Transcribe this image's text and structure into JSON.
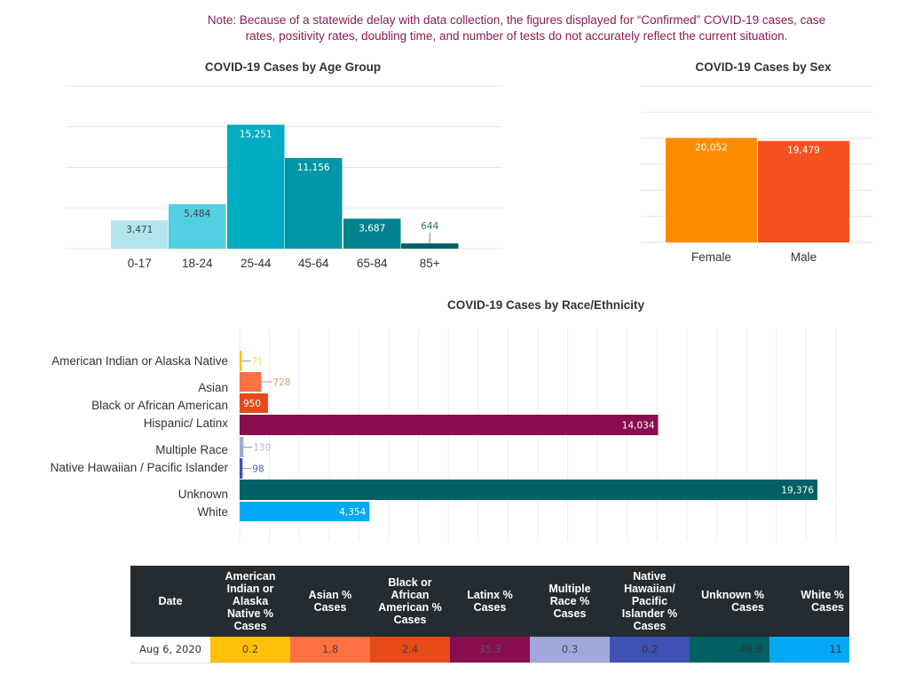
{
  "note": "Note: Because of a statewide delay with data collection, the figures displayed for “Confirmed” COVID-19 cases, case rates, positivity rates, doubling time, and number of tests do not accurately reflect the current situation.",
  "chart_data": [
    {
      "id": "age",
      "type": "bar",
      "title": "COVID-19 Cases by Age Group",
      "xlabel": "",
      "ylabel": "",
      "categories": [
        "0-17",
        "18-24",
        "25-44",
        "45-64",
        "65-84",
        "85+"
      ],
      "values": [
        3471,
        5484,
        15251,
        11156,
        3687,
        644
      ],
      "value_labels": [
        "3,471",
        "5,484",
        "15,251",
        "11,156",
        "3,687",
        "644"
      ],
      "colors": [
        "#b2e6ee",
        "#52cfe0",
        "#00acc1",
        "#0097a7",
        "#00838f",
        "#006064"
      ],
      "label_colors": [
        "#444444",
        "#444444",
        "#ffffff",
        "#ffffff",
        "#ffffff",
        "#406870"
      ],
      "ylim": [
        0,
        20000
      ],
      "grid": true,
      "legend": "none"
    },
    {
      "id": "sex",
      "type": "bar",
      "title": "COVID-19 Cases by Sex",
      "xlabel": "",
      "ylabel": "",
      "categories": [
        "Female",
        "Male"
      ],
      "values": [
        20052,
        19479
      ],
      "value_labels": [
        "20,052",
        "19,479"
      ],
      "colors": [
        "#ff8c00",
        "#f4511e"
      ],
      "label_colors": [
        "#ffffff",
        "#ffffff"
      ],
      "ylim": [
        0,
        30000
      ],
      "grid": true,
      "legend": "none"
    },
    {
      "id": "race",
      "type": "bar",
      "orientation": "horizontal",
      "title": "COVID-19 Cases by Race/Ethnicity",
      "xlabel": "",
      "ylabel": "",
      "categories": [
        "American Indian or Alaska Native",
        "Asian",
        "Black or African American",
        "Hispanic/ Latinx",
        "Multiple Race",
        "Native Hawaiian / Pacific Islander",
        "Unknown",
        "White"
      ],
      "values": [
        71,
        728,
        950,
        14034,
        130,
        98,
        19376,
        4354
      ],
      "value_labels": [
        "71",
        "728",
        "950",
        "14,034",
        "130",
        "98",
        "19,376",
        "4,354"
      ],
      "colors": [
        "#ffc107",
        "#ff7043",
        "#e64a19",
        "#880e4f",
        "#9fa8da",
        "#3f51b5",
        "#006064",
        "#03a9f4"
      ],
      "label_colors": [
        "#f5d66a",
        "#f0977a",
        "#ffffff",
        "#ffffff",
        "#b0b6de",
        "#5060b8",
        "#ffffff",
        "#ffffff"
      ],
      "xlim": [
        0,
        20000
      ],
      "grid": true,
      "legend": "none"
    }
  ],
  "table": {
    "headers": [
      "Date",
      "American Indian or Alaska Native % Cases",
      "Asian % Cases",
      "Black or African American % Cases",
      "Latinx % Cases",
      "Multiple Race % Cases",
      "Native Hawaiian/ Pacific Islander % Cases",
      "Unknown % Cases",
      "White % Cases"
    ],
    "rows": [
      {
        "cells": [
          "Aug 6, 2020",
          "0.2",
          "1.8",
          "2.4",
          "35.3",
          "0.3",
          "0.2",
          "48.8",
          "11"
        ],
        "colors": [
          "#ffffff",
          "#ffc107",
          "#ff7043",
          "#e64a19",
          "#880e4f",
          "#9fa8da",
          "#3f51b5",
          "#006064",
          "#03a9f4"
        ],
        "text_colors": [
          "#333333",
          "#444444",
          "#444444",
          "#444444",
          "#555555",
          "#444444",
          "#333333",
          "#333333",
          "#333333"
        ]
      }
    ]
  }
}
